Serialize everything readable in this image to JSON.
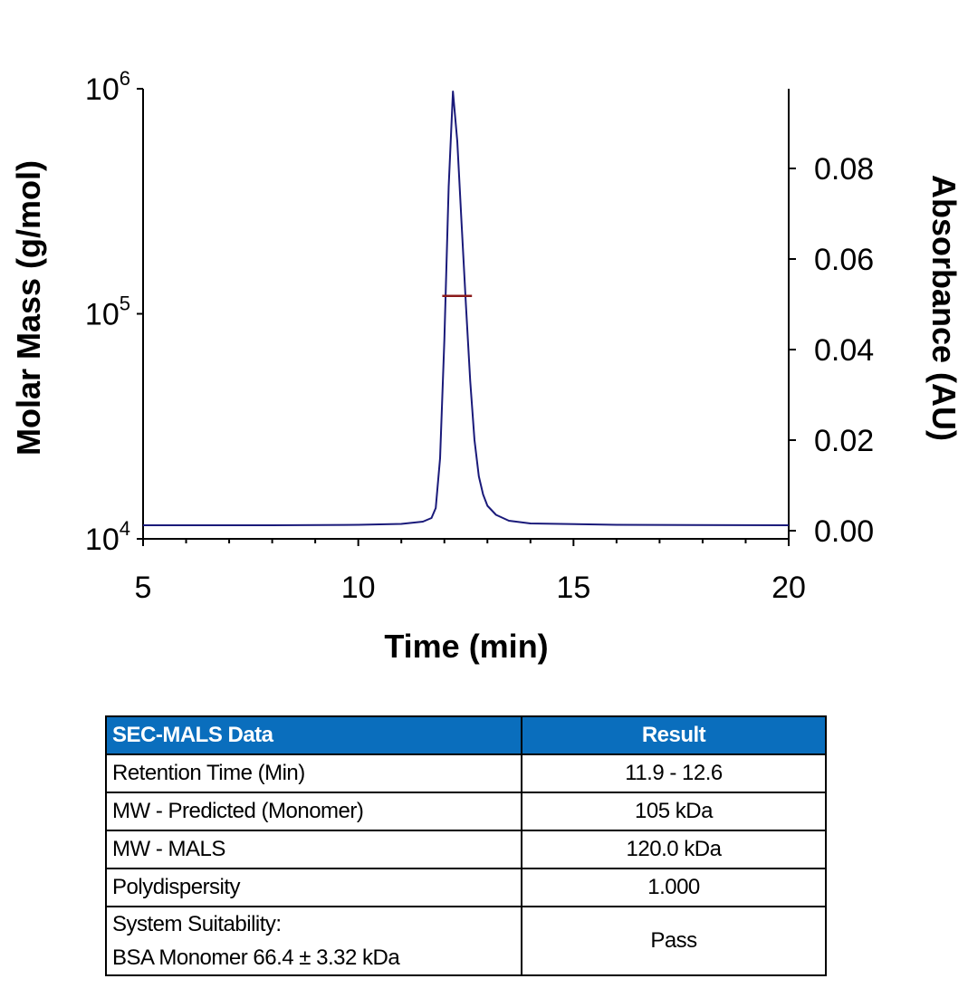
{
  "chart_data": {
    "type": "line",
    "xlabel": "Time (min)",
    "ylabel": "Molar Mass (g/mol)",
    "y2label": "Absorbance (AU)",
    "xlim": [
      5,
      20
    ],
    "ylim": [
      10000,
      1000000
    ],
    "yscale": "log",
    "y2lim": [
      -0.0018,
      0.0976
    ],
    "x_ticks": [
      "5",
      "10",
      "15",
      "20"
    ],
    "x_tick_values": [
      5,
      10,
      15,
      20
    ],
    "y_ticks": [
      {
        "base": "10",
        "exp": "4",
        "value": 10000
      },
      {
        "base": "10",
        "exp": "5",
        "value": 100000
      },
      {
        "base": "10",
        "exp": "6",
        "value": 1000000
      }
    ],
    "y2_ticks": [
      "0.00",
      "0.02",
      "0.04",
      "0.06",
      "0.08"
    ],
    "y2_tick_values": [
      0,
      0.02,
      0.04,
      0.06,
      0.08
    ],
    "grid": false,
    "series": [
      {
        "name": "Absorbance",
        "axis": "right",
        "color": "#1a1a7a",
        "points": [
          [
            5,
            0.0012
          ],
          [
            8,
            0.0012
          ],
          [
            10,
            0.0013
          ],
          [
            11,
            0.0015
          ],
          [
            11.5,
            0.002
          ],
          [
            11.7,
            0.0028
          ],
          [
            11.8,
            0.005
          ],
          [
            11.9,
            0.016
          ],
          [
            12.0,
            0.042
          ],
          [
            12.1,
            0.076
          ],
          [
            12.2,
            0.097
          ],
          [
            12.3,
            0.086
          ],
          [
            12.4,
            0.068
          ],
          [
            12.5,
            0.05
          ],
          [
            12.6,
            0.033
          ],
          [
            12.7,
            0.02
          ],
          [
            12.8,
            0.012
          ],
          [
            12.9,
            0.008
          ],
          [
            13.0,
            0.0055
          ],
          [
            13.2,
            0.0035
          ],
          [
            13.5,
            0.0022
          ],
          [
            14,
            0.0016
          ],
          [
            16,
            0.0013
          ],
          [
            20,
            0.0012
          ]
        ]
      },
      {
        "name": "Molar Mass",
        "axis": "left",
        "color": "#8b1a1a",
        "points": [
          [
            11.95,
            120000
          ],
          [
            12.64,
            120000
          ]
        ]
      }
    ]
  },
  "table": {
    "headers": [
      "SEC-MALS Data",
      "Result"
    ],
    "rows": [
      {
        "label": "Retention Time (Min)",
        "value": "11.9 - 12.6"
      },
      {
        "label": "MW - Predicted (Monomer)",
        "value": "105 kDa"
      },
      {
        "label": "MW - MALS",
        "value": "120.0 kDa"
      },
      {
        "label": "Polydispersity",
        "value": "1.000"
      }
    ],
    "last_row": {
      "label_line1": "System Suitability:",
      "label_line2": "BSA Monomer 66.4 ± 3.32 kDa",
      "value": "Pass"
    }
  }
}
